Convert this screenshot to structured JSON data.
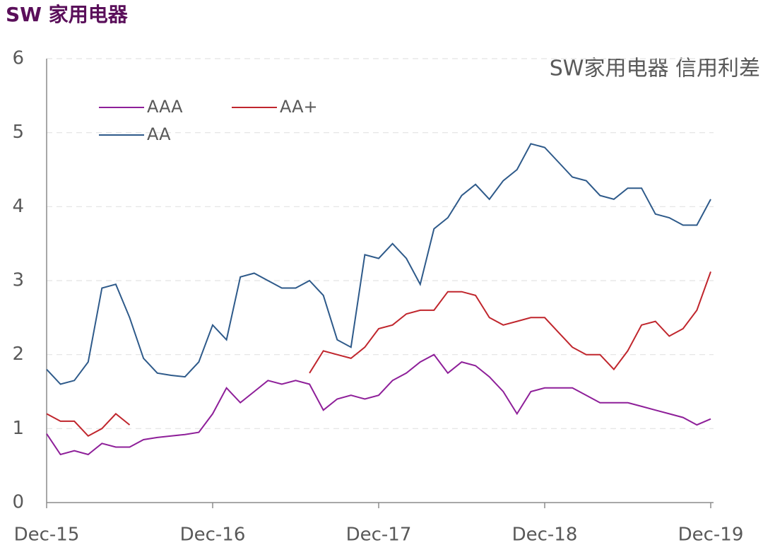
{
  "chart_data": {
    "type": "line",
    "title": "SW 家用电器",
    "annotation": "SW家用电器 信用利差",
    "x": [
      "2015-12",
      "2016-01",
      "2016-02",
      "2016-03",
      "2016-04",
      "2016-05",
      "2016-06",
      "2016-07",
      "2016-08",
      "2016-09",
      "2016-10",
      "2016-11",
      "2016-12",
      "2017-01",
      "2017-02",
      "2017-03",
      "2017-04",
      "2017-05",
      "2017-06",
      "2017-07",
      "2017-08",
      "2017-09",
      "2017-10",
      "2017-11",
      "2017-12",
      "2018-01",
      "2018-02",
      "2018-03",
      "2018-04",
      "2018-05",
      "2018-06",
      "2018-07",
      "2018-08",
      "2018-09",
      "2018-10",
      "2018-11",
      "2018-12",
      "2019-01",
      "2019-02",
      "2019-03",
      "2019-04",
      "2019-05",
      "2019-06",
      "2019-07",
      "2019-08",
      "2019-09",
      "2019-10",
      "2019-11",
      "2019-12"
    ],
    "series": [
      {
        "name": "AAA",
        "color": "#8e1f99",
        "values": [
          0.93,
          0.65,
          0.7,
          0.65,
          0.8,
          0.75,
          0.75,
          0.85,
          0.88,
          0.9,
          0.92,
          0.95,
          1.2,
          1.55,
          1.35,
          1.5,
          1.65,
          1.6,
          1.65,
          1.6,
          1.25,
          1.4,
          1.45,
          1.4,
          1.45,
          1.65,
          1.75,
          1.9,
          2.0,
          1.75,
          1.9,
          1.85,
          1.7,
          1.5,
          1.2,
          1.5,
          1.55,
          1.55,
          1.55,
          1.45,
          1.35,
          1.35,
          1.35,
          1.3,
          1.25,
          1.2,
          1.15,
          1.05,
          1.13
        ]
      },
      {
        "name": "AA+",
        "color": "#c0262d",
        "values": [
          1.2,
          1.1,
          1.1,
          0.9,
          1.0,
          1.2,
          1.05,
          null,
          null,
          null,
          null,
          null,
          null,
          null,
          null,
          null,
          null,
          null,
          null,
          1.75,
          2.05,
          2.0,
          1.95,
          2.1,
          2.35,
          2.4,
          2.55,
          2.6,
          2.6,
          2.85,
          2.85,
          2.8,
          2.5,
          2.4,
          2.45,
          2.5,
          2.5,
          2.3,
          2.1,
          2.0,
          2.0,
          1.8,
          2.05,
          2.4,
          2.45,
          2.25,
          2.35,
          2.6,
          3.12
        ]
      },
      {
        "name": "AA",
        "color": "#2e5a8a",
        "values": [
          1.8,
          1.6,
          1.65,
          1.9,
          2.9,
          2.95,
          2.5,
          1.95,
          1.75,
          1.72,
          1.7,
          1.9,
          2.4,
          2.2,
          3.05,
          3.1,
          3.0,
          2.9,
          2.9,
          3.0,
          2.8,
          2.2,
          2.1,
          3.35,
          3.3,
          3.5,
          3.3,
          2.95,
          3.7,
          3.85,
          4.15,
          4.3,
          4.1,
          4.35,
          4.5,
          4.85,
          4.8,
          4.6,
          4.4,
          4.35,
          4.15,
          4.1,
          4.25,
          4.25,
          3.9,
          3.85,
          3.75,
          3.75,
          4.1
        ]
      }
    ],
    "xlim": [
      "2015-12",
      "2019-12"
    ],
    "xticks": [
      {
        "value": "2015-12",
        "label": "Dec-15"
      },
      {
        "value": "2016-12",
        "label": "Dec-16"
      },
      {
        "value": "2017-12",
        "label": "Dec-17"
      },
      {
        "value": "2018-12",
        "label": "Dec-18"
      },
      {
        "value": "2019-12",
        "label": "Dec-19"
      }
    ],
    "ylim": [
      0,
      6
    ],
    "yticks": [
      0,
      1,
      2,
      3,
      4,
      5,
      6
    ],
    "grid": true
  }
}
